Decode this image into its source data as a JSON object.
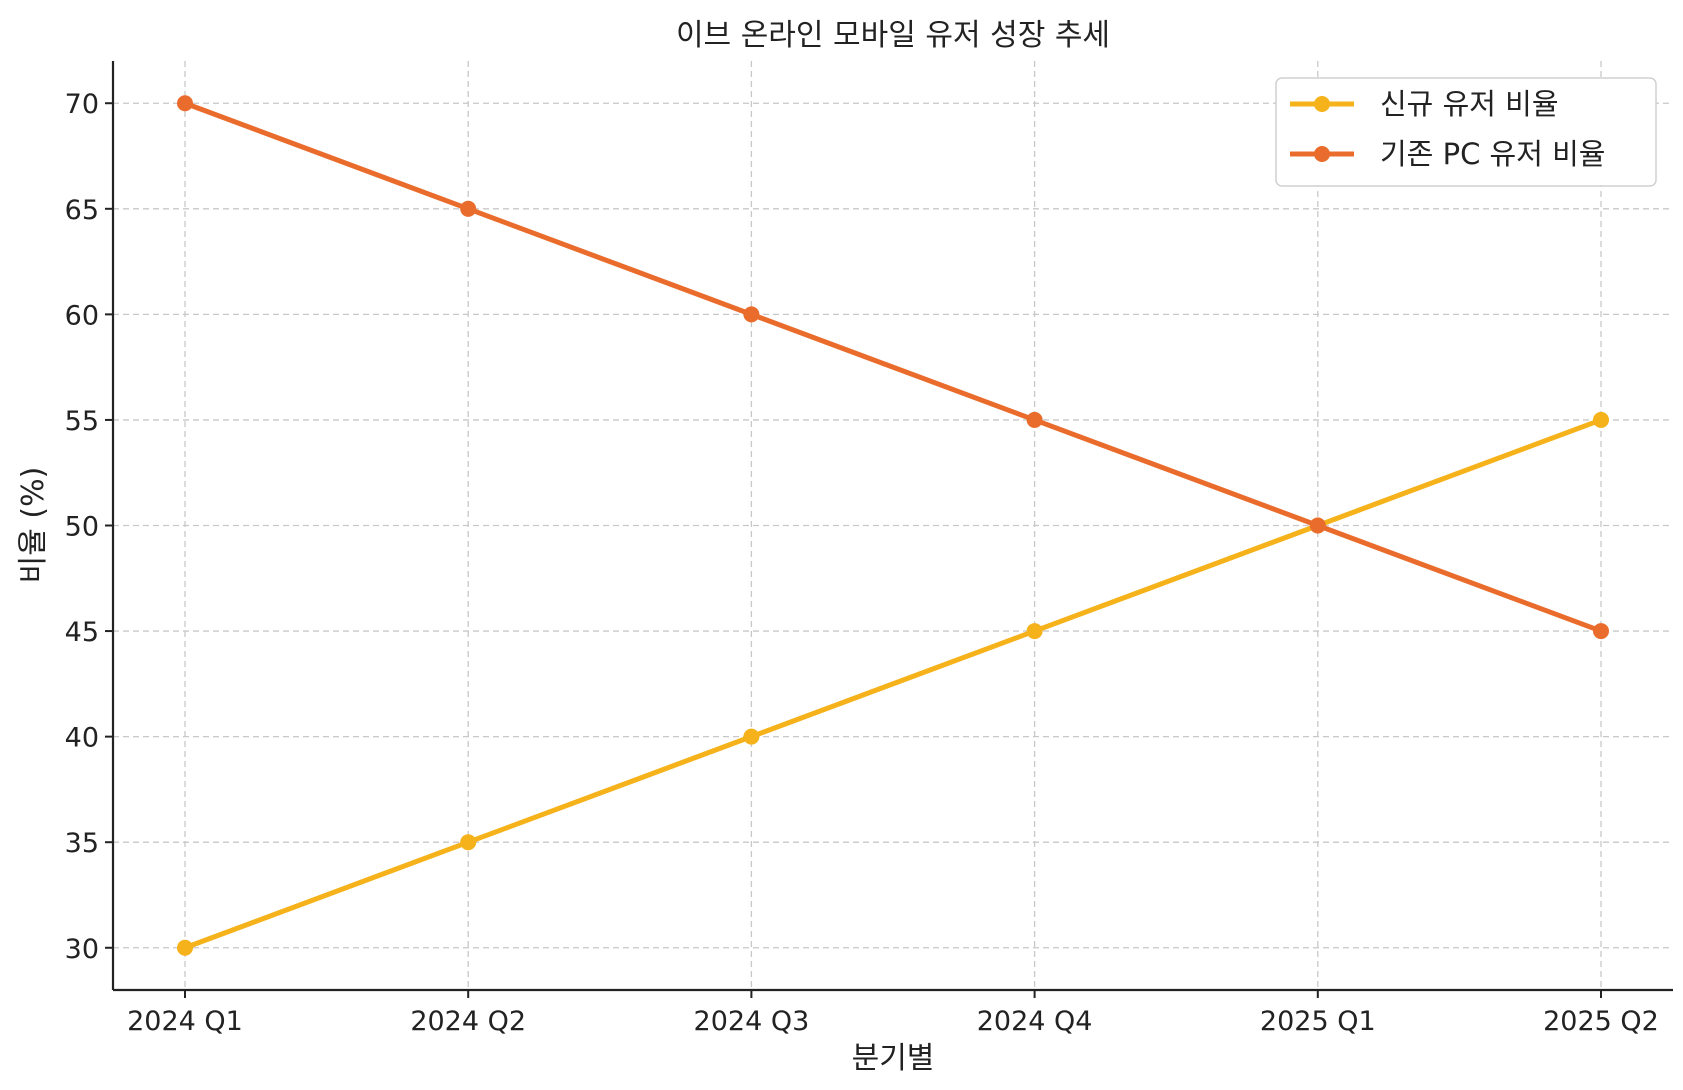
{
  "chart_data": {
    "type": "line",
    "title": "이브 온라인 모바일 유저 성장 추세",
    "xlabel": "분기별",
    "ylabel": "비율 (%)",
    "categories": [
      "2024 Q1",
      "2024 Q2",
      "2024 Q3",
      "2024 Q4",
      "2025 Q1",
      "2025 Q2"
    ],
    "ylim": [
      28,
      72
    ],
    "yticks": [
      30,
      35,
      40,
      45,
      50,
      55,
      60,
      65,
      70
    ],
    "grid": true,
    "legend_position": "top-right",
    "series": [
      {
        "name": "신규 유저 비율",
        "color": "#f5b21a",
        "values": [
          30,
          35,
          40,
          45,
          50,
          55
        ]
      },
      {
        "name": "기존 PC 유저 비율",
        "color": "#ea6c2c",
        "values": [
          70,
          65,
          60,
          55,
          50,
          45
        ]
      }
    ]
  }
}
